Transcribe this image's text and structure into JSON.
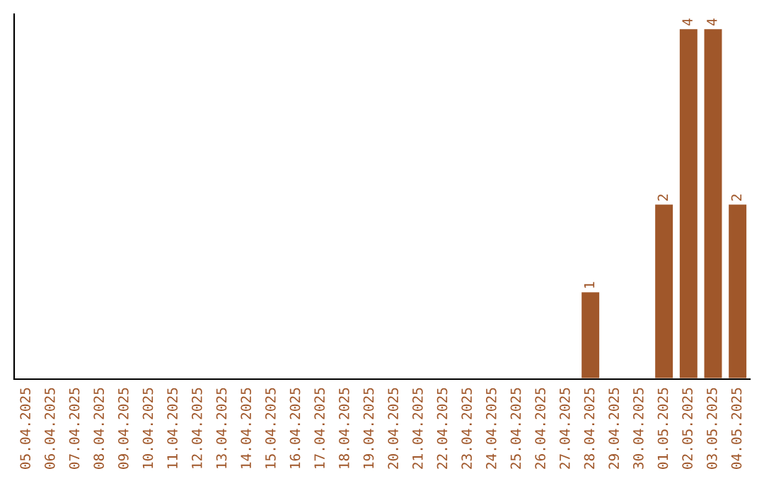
{
  "chart_data": {
    "type": "bar",
    "categories": [
      "05.04.2025",
      "06.04.2025",
      "07.04.2025",
      "08.04.2025",
      "09.04.2025",
      "10.04.2025",
      "11.04.2025",
      "12.04.2025",
      "13.04.2025",
      "14.04.2025",
      "15.04.2025",
      "16.04.2025",
      "17.04.2025",
      "18.04.2025",
      "19.04.2025",
      "20.04.2025",
      "21.04.2025",
      "22.04.2025",
      "23.04.2025",
      "24.04.2025",
      "25.04.2025",
      "26.04.2025",
      "27.04.2025",
      "28.04.2025",
      "29.04.2025",
      "30.04.2025",
      "01.05.2025",
      "02.05.2025",
      "03.05.2025",
      "04.05.2025"
    ],
    "values": [
      null,
      null,
      null,
      null,
      null,
      null,
      null,
      null,
      null,
      null,
      null,
      null,
      null,
      null,
      null,
      null,
      null,
      null,
      null,
      null,
      null,
      null,
      null,
      1,
      null,
      null,
      2,
      4,
      4,
      2
    ],
    "color": "#a0572a",
    "data_labels": true,
    "grid": false,
    "legend": false
  }
}
